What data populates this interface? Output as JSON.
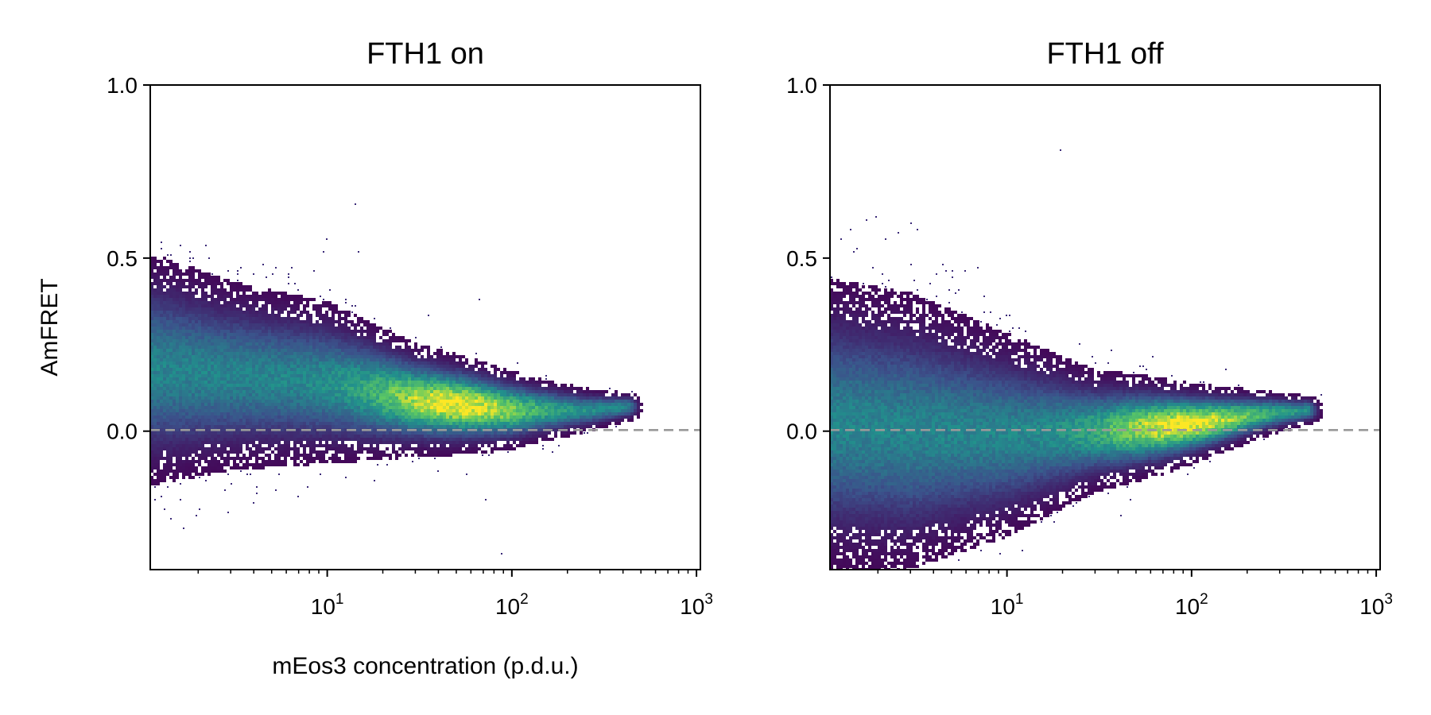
{
  "chart_data": [
    {
      "type": "heatmap",
      "title": "FTH1 on",
      "xlabel": "mEos3 concentration (p.d.u.)",
      "ylabel": "AmFRET",
      "x_scale": "log",
      "xlim": [
        1.1,
        1050
      ],
      "ylim": [
        -0.4,
        1.0
      ],
      "x_ticks": [
        {
          "base": "10",
          "exp": "1",
          "value": 10
        },
        {
          "base": "10",
          "exp": "2",
          "value": 100
        },
        {
          "base": "10",
          "exp": "3",
          "value": 1000
        }
      ],
      "y_ticks": [
        {
          "label": "1.0",
          "value": 1.0
        },
        {
          "label": "0.5",
          "value": 0.5
        },
        {
          "label": "0.0",
          "value": 0.0
        }
      ],
      "reference_line": {
        "y": 0.0,
        "style": "dashed",
        "color": "#999999"
      },
      "colormap": "viridis",
      "density_ridge": [
        {
          "x": 1.1,
          "y": 0.18,
          "spread": 0.16
        },
        {
          "x": 3,
          "y": 0.16,
          "spread": 0.13
        },
        {
          "x": 10,
          "y": 0.14,
          "spread": 0.11
        },
        {
          "x": 30,
          "y": 0.09,
          "spread": 0.07
        },
        {
          "x": 100,
          "y": 0.06,
          "spread": 0.05
        },
        {
          "x": 250,
          "y": 0.06,
          "spread": 0.03
        },
        {
          "x": 420,
          "y": 0.07,
          "spread": 0.02
        }
      ],
      "density_peak": {
        "x": 50,
        "y": 0.07
      }
    },
    {
      "type": "heatmap",
      "title": "FTH1 off",
      "xlabel": "",
      "ylabel": "",
      "x_scale": "log",
      "xlim": [
        1.1,
        1050
      ],
      "ylim": [
        -0.4,
        1.0
      ],
      "x_ticks": [
        {
          "base": "10",
          "exp": "1",
          "value": 10
        },
        {
          "base": "10",
          "exp": "2",
          "value": 100
        },
        {
          "base": "10",
          "exp": "3",
          "value": 1000
        }
      ],
      "y_ticks": [
        {
          "label": "1.0",
          "value": 1.0
        },
        {
          "label": "0.5",
          "value": 0.5
        },
        {
          "label": "0.0",
          "value": 0.0
        }
      ],
      "reference_line": {
        "y": 0.0,
        "style": "dashed",
        "color": "#999999"
      },
      "colormap": "viridis",
      "density_ridge": [
        {
          "x": 1.1,
          "y": 0.02,
          "spread": 0.2
        },
        {
          "x": 3,
          "y": 0.0,
          "spread": 0.19
        },
        {
          "x": 10,
          "y": -0.01,
          "spread": 0.14
        },
        {
          "x": 30,
          "y": 0.0,
          "spread": 0.08
        },
        {
          "x": 100,
          "y": 0.02,
          "spread": 0.05
        },
        {
          "x": 250,
          "y": 0.05,
          "spread": 0.03
        },
        {
          "x": 420,
          "y": 0.06,
          "spread": 0.02
        }
      ],
      "density_peak": {
        "x": 90,
        "y": 0.02
      }
    }
  ],
  "colors": {
    "reference_line": "#999999",
    "sparse": "#3b2a78",
    "viridis": [
      "#440154",
      "#3b528b",
      "#21918c",
      "#5ec962",
      "#fde725"
    ]
  }
}
